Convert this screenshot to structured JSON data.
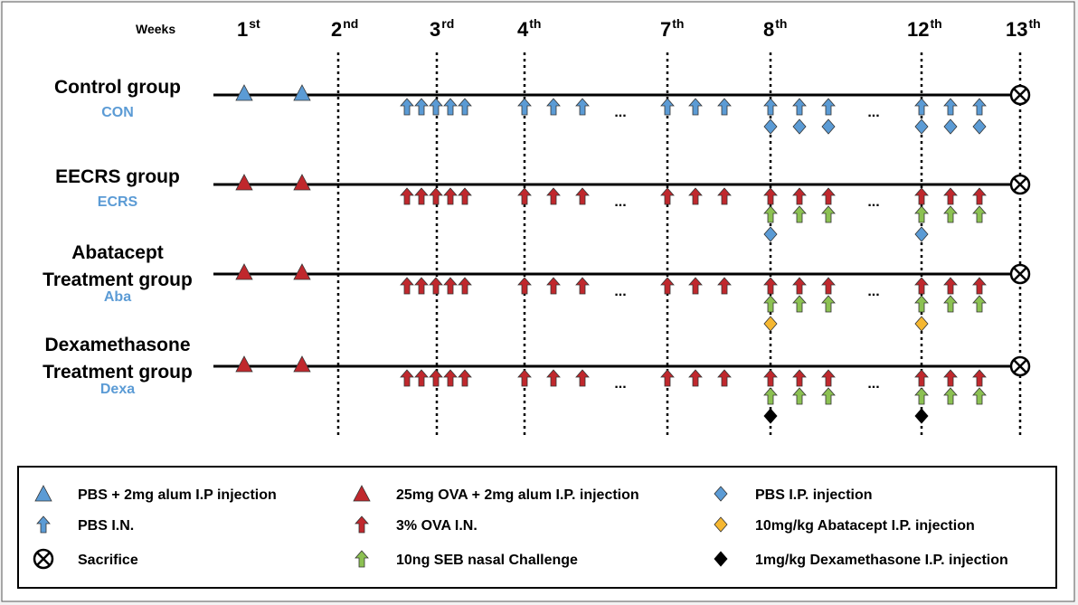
{
  "weeks_title": "Weeks",
  "weeks": [
    {
      "num": "1",
      "sup": "st"
    },
    {
      "num": "2",
      "sup": "nd"
    },
    {
      "num": "3",
      "sup": "rd"
    },
    {
      "num": "4",
      "sup": "th"
    },
    {
      "num": "7",
      "sup": "th"
    },
    {
      "num": "8",
      "sup": "th"
    },
    {
      "num": "12",
      "sup": "th"
    },
    {
      "num": "13",
      "sup": "th"
    }
  ],
  "ellipsis": "...",
  "colors": {
    "blue": "#5b9bd5",
    "red": "#c0282d",
    "green": "#8cc152",
    "orange": "#f5b731",
    "black": "#000000"
  },
  "groups": [
    {
      "name_lines": [
        "Control group"
      ],
      "abbr": "CON",
      "scheme": "blue",
      "under_row1": "blue-diamond",
      "under_row2": ""
    },
    {
      "name_lines": [
        "EECRS group"
      ],
      "abbr": "ECRS",
      "scheme": "red",
      "under_row1": "green-arrow",
      "under_row2": "blue-diamond"
    },
    {
      "name_lines": [
        "Abatacept",
        "Treatment group"
      ],
      "abbr": "Aba",
      "scheme": "red",
      "under_row1": "green-arrow",
      "under_row2": "orange-diamond"
    },
    {
      "name_lines": [
        "Dexamethasone",
        "Treatment group"
      ],
      "abbr": "Dexa",
      "scheme": "red",
      "under_row1": "green-arrow",
      "under_row2": "black-diamond"
    }
  ],
  "legend": [
    {
      "icon": "blue-triangle",
      "text": "PBS + 2mg alum I.P injection"
    },
    {
      "icon": "blue-arrow",
      "text": "PBS I.N."
    },
    {
      "icon": "sacrifice",
      "text": "Sacrifice"
    },
    {
      "icon": "red-triangle",
      "text": "25mg OVA + 2mg alum I.P. injection"
    },
    {
      "icon": "red-arrow",
      "text": "3% OVA I.N."
    },
    {
      "icon": "green-arrow",
      "text": "10ng SEB nasal Challenge"
    },
    {
      "icon": "blue-diamond",
      "text": "PBS I.P. injection"
    },
    {
      "icon": "orange-diamond",
      "text": "10mg/kg Abatacept I.P. injection"
    },
    {
      "icon": "black-diamond",
      "text": "1mg/kg Dexamethasone I.P. injection"
    }
  ]
}
